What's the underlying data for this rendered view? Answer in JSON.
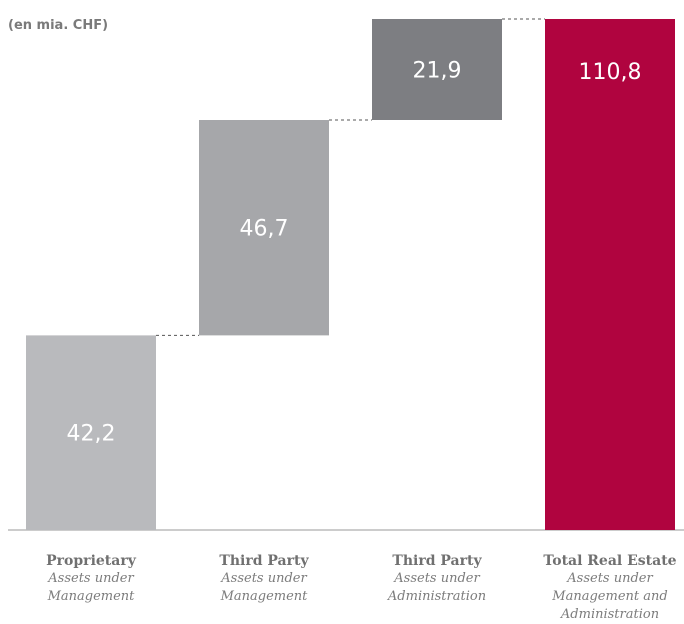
{
  "chart_data": {
    "type": "bar",
    "subtype": "waterfall",
    "unit_label": "(en mia. CHF)",
    "categories": [
      {
        "main": "Proprietary",
        "sub": "Assets under\nManagement"
      },
      {
        "main": "Third Party",
        "sub": "Assets under\nManagement"
      },
      {
        "main": "Third Party",
        "sub": "Assets under\nAdministration"
      },
      {
        "main": "Total Real Estate",
        "sub": "Assets under\nManagement and\nAdministration"
      }
    ],
    "values": [
      42.2,
      46.7,
      21.9,
      110.8
    ],
    "value_labels": [
      "42,2",
      "46,7",
      "21,9",
      "110,8"
    ],
    "bar_kinds": [
      "increment",
      "increment",
      "increment",
      "total"
    ],
    "colors": [
      "#b9babd",
      "#a6a7aa",
      "#7d7e82",
      "#b0043f"
    ],
    "ylim": [
      0,
      110.8
    ],
    "grid": false,
    "legend": "none"
  }
}
